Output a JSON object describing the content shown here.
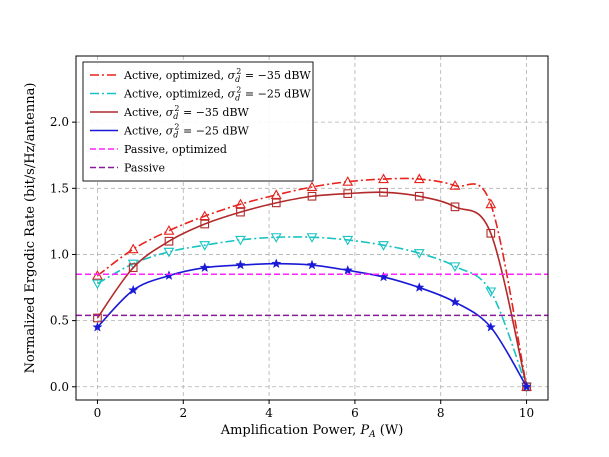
{
  "chart_data": {
    "type": "line",
    "xlabel": "Amplification Power, P_A (W)",
    "xlabel_parts": {
      "prefix": "Amplification Power, ",
      "symbol": "P",
      "subscript": "A",
      "suffix": " (W)"
    },
    "ylabel": "Normalized Ergodic Rate (bit/s/Hz/antenna)",
    "xlim": [
      -0.5,
      10.5
    ],
    "ylim": [
      -0.1,
      2.5
    ],
    "xticks": [
      0,
      2,
      4,
      6,
      8,
      10
    ],
    "yticks": [
      0.0,
      0.5,
      1.0,
      1.5,
      2.0
    ],
    "xtick_labels": [
      "0",
      "2",
      "4",
      "6",
      "8",
      "10"
    ],
    "ytick_labels": [
      "0.0",
      "0.5",
      "1.0",
      "1.5",
      "2.0"
    ],
    "grid": true,
    "legend_position": "top-left",
    "series": [
      {
        "name": "Active, optimized, σ_d^2 = −35 dBW",
        "label_prefix": "Active, optimized, ",
        "label_value": "−35 dBW",
        "color": "#e8221c",
        "linestyle": "dashdot",
        "marker": "triangle-up",
        "x": [
          0,
          0.833,
          1.667,
          2.5,
          3.333,
          4.167,
          5.0,
          5.833,
          6.667,
          7.5,
          8.333,
          9.167,
          10.0
        ],
        "y": [
          0.84,
          1.04,
          1.18,
          1.29,
          1.38,
          1.45,
          1.51,
          1.55,
          1.57,
          1.57,
          1.52,
          1.38,
          0.0
        ]
      },
      {
        "name": "Active, optimized, σ_d^2 = −25 dBW",
        "label_prefix": "Active, optimized, ",
        "label_value": "−25 dBW",
        "color": "#19c3c3",
        "linestyle": "dashdot",
        "marker": "triangle-down",
        "x": [
          0,
          0.833,
          1.667,
          2.5,
          3.333,
          4.167,
          5.0,
          5.833,
          6.667,
          7.5,
          8.333,
          9.167,
          10.0
        ],
        "y": [
          0.78,
          0.93,
          1.02,
          1.07,
          1.11,
          1.13,
          1.13,
          1.11,
          1.07,
          1.01,
          0.91,
          0.72,
          0.0
        ]
      },
      {
        "name": "Active, σ_d^2 = −35 dBW",
        "label_prefix": "Active, ",
        "label_value": "−35 dBW",
        "color": "#b22a2a",
        "linestyle": "solid",
        "marker": "square",
        "x": [
          0,
          0.833,
          1.667,
          2.5,
          3.333,
          4.167,
          5.0,
          5.833,
          6.667,
          7.5,
          8.333,
          9.167,
          10.0
        ],
        "y": [
          0.52,
          0.9,
          1.1,
          1.23,
          1.32,
          1.39,
          1.44,
          1.46,
          1.47,
          1.44,
          1.36,
          1.16,
          0.0
        ]
      },
      {
        "name": "Active, σ_d^2 = −25 dBW",
        "label_prefix": "Active, ",
        "label_value": "−25 dBW",
        "color": "#1a1ad6",
        "linestyle": "solid",
        "marker": "star",
        "x": [
          0,
          0.833,
          1.667,
          2.5,
          3.333,
          4.167,
          5.0,
          5.833,
          6.667,
          7.5,
          8.333,
          9.167,
          10.0
        ],
        "y": [
          0.45,
          0.73,
          0.84,
          0.9,
          0.92,
          0.93,
          0.92,
          0.88,
          0.83,
          0.75,
          0.64,
          0.45,
          0.0
        ]
      },
      {
        "name": "Passive, optimized",
        "color": "#ff22ff",
        "linestyle": "dashed",
        "marker": "none",
        "constant": 0.85
      },
      {
        "name": "Passive",
        "color": "#8b1a9b",
        "linestyle": "dashed",
        "marker": "none",
        "constant": 0.54
      }
    ]
  }
}
